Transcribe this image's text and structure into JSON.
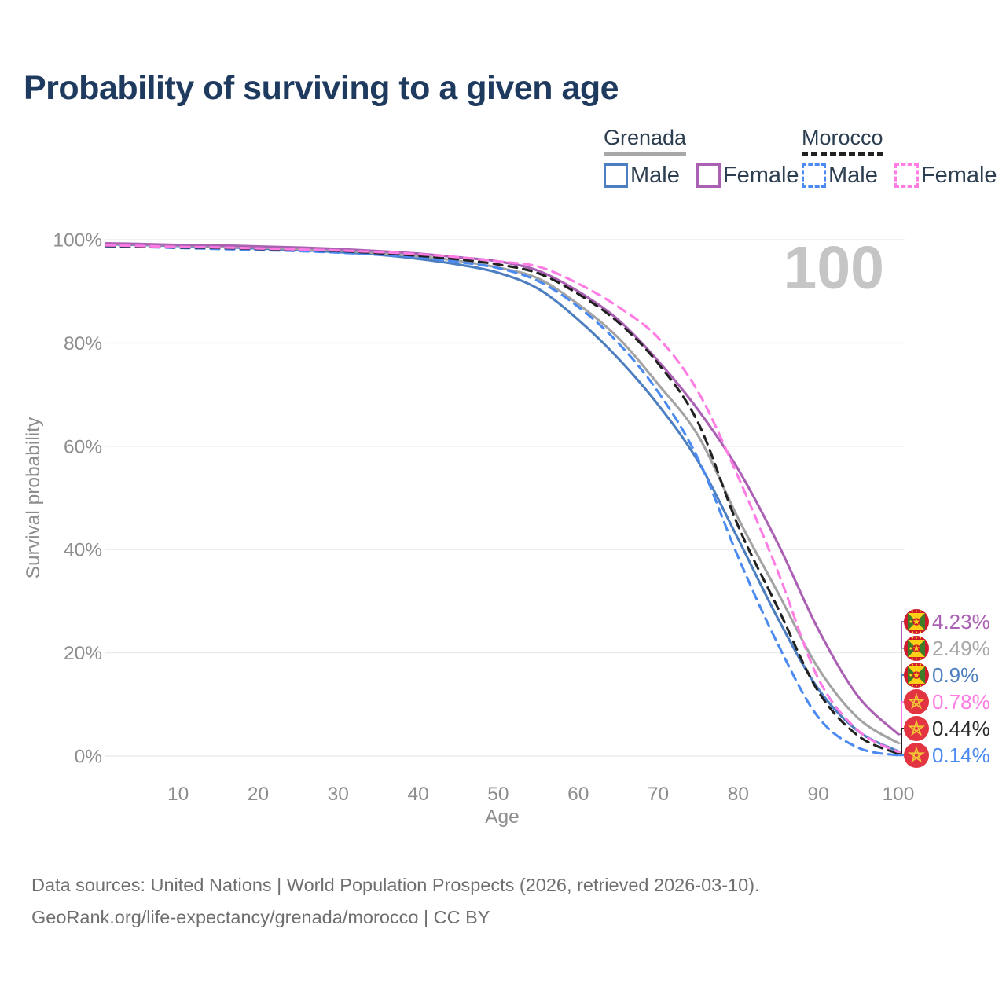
{
  "title": "Probability of surviving to a given age",
  "watermark": "100",
  "legend": {
    "groups": [
      {
        "label": "Grenada",
        "rule_color": "#a8a8a8",
        "rule_style": "solid",
        "items": [
          {
            "label": "Male",
            "color": "#4d7ec0",
            "style": "solid"
          },
          {
            "label": "Female",
            "color": "#ab61b3",
            "style": "solid"
          }
        ]
      },
      {
        "label": "Morocco",
        "rule_color": "#212121",
        "rule_style": "dashed",
        "items": [
          {
            "label": "Male",
            "color": "#4b8af2",
            "style": "dashed"
          },
          {
            "label": "Female",
            "color": "#ff7ce4",
            "style": "dashed"
          }
        ]
      }
    ]
  },
  "chart_data": {
    "type": "line",
    "title": "Probability of surviving to a given age",
    "xlabel": "Age",
    "ylabel": "Survival probability",
    "xlim": [
      1,
      100
    ],
    "ylim": [
      0,
      100
    ],
    "x_ticks": [
      10,
      20,
      30,
      40,
      50,
      60,
      70,
      80,
      90,
      100
    ],
    "y_ticks": [
      {
        "value": 0,
        "label": "0%"
      },
      {
        "value": 20,
        "label": "20%"
      },
      {
        "value": 40,
        "label": "40%"
      },
      {
        "value": 60,
        "label": "60%"
      },
      {
        "value": 80,
        "label": "80%"
      },
      {
        "value": 100,
        "label": "100%"
      }
    ],
    "grid": "horizontal",
    "legend_position": "top-right",
    "ages": [
      1,
      5,
      10,
      15,
      20,
      25,
      30,
      35,
      40,
      45,
      50,
      55,
      60,
      65,
      70,
      75,
      80,
      85,
      90,
      95,
      100
    ],
    "series": [
      {
        "name": "Grenada Male",
        "country": "Grenada",
        "sex": "Male",
        "color": "#4d7ec0",
        "dash": false,
        "values": [
          99.1,
          99.0,
          98.8,
          98.6,
          98.3,
          98.0,
          97.6,
          97.1,
          96.3,
          95.2,
          93.6,
          90.5,
          84.5,
          77.0,
          68.0,
          57.0,
          42.0,
          26.5,
          13.0,
          4.8,
          0.9
        ]
      },
      {
        "name": "Grenada Both sexes",
        "country": "Grenada",
        "sex": "Both",
        "color": "#a3a3a3",
        "dash": false,
        "values": [
          99.2,
          99.1,
          98.9,
          98.7,
          98.5,
          98.2,
          97.9,
          97.4,
          96.8,
          95.9,
          94.6,
          92.5,
          87.5,
          81.0,
          72.0,
          62.0,
          46.0,
          31.5,
          17.0,
          7.3,
          2.49
        ]
      },
      {
        "name": "Grenada Female",
        "country": "Grenada",
        "sex": "Female",
        "color": "#ab61b3",
        "dash": false,
        "values": [
          99.3,
          99.2,
          99.0,
          98.9,
          98.7,
          98.5,
          98.2,
          97.8,
          97.3,
          96.6,
          95.8,
          94.0,
          90.0,
          84.5,
          76.5,
          67.0,
          55.5,
          41.0,
          24.5,
          11.5,
          4.23
        ]
      },
      {
        "name": "Morocco Male",
        "country": "Morocco",
        "sex": "Male",
        "color": "#4b8af2",
        "dash": true,
        "values": [
          98.7,
          98.6,
          98.4,
          98.2,
          98.0,
          97.8,
          97.5,
          97.1,
          96.6,
          95.7,
          94.5,
          92.0,
          87.0,
          80.0,
          70.5,
          57.5,
          38.5,
          21.5,
          7.5,
          1.6,
          0.14
        ]
      },
      {
        "name": "Morocco Both sexes",
        "country": "Morocco",
        "sex": "Both",
        "color": "#212121",
        "dash": true,
        "values": [
          98.8,
          98.7,
          98.5,
          98.4,
          98.2,
          98.0,
          97.8,
          97.4,
          96.9,
          96.2,
          95.2,
          93.5,
          89.5,
          84.0,
          76.0,
          64.5,
          44.5,
          28.5,
          12.5,
          3.9,
          0.44
        ]
      },
      {
        "name": "Morocco Female",
        "country": "Morocco",
        "sex": "Female",
        "color": "#ff7ce4",
        "dash": true,
        "values": [
          98.9,
          98.8,
          98.6,
          98.5,
          98.3,
          98.1,
          97.9,
          97.6,
          97.2,
          96.6,
          95.8,
          94.8,
          91.5,
          87.0,
          81.0,
          70.5,
          54.0,
          35.5,
          15.0,
          4.9,
          0.78
        ]
      }
    ],
    "end_labels": [
      {
        "text": "4.23%",
        "series": "Grenada Female",
        "flag": "grenada",
        "color": "#ab61b3"
      },
      {
        "text": "2.49%",
        "series": "Grenada Both sexes",
        "flag": "grenada",
        "color": "#a8a8a8"
      },
      {
        "text": "0.9%",
        "series": "Grenada Male",
        "flag": "grenada",
        "color": "#4d7ec0"
      },
      {
        "text": "0.78%",
        "series": "Morocco Female",
        "flag": "morocco",
        "color": "#ff7ce4"
      },
      {
        "text": "0.44%",
        "series": "Morocco Both sexes",
        "flag": "morocco",
        "color": "#2b2b2b"
      },
      {
        "text": "0.14%",
        "series": "Morocco Male",
        "flag": "morocco",
        "color": "#4b8af2"
      }
    ],
    "flag_colors": {
      "grenada_red": "#cf1b2b",
      "grenada_green": "#3d7d28",
      "grenada_yellow": "#fcd116",
      "morocco_red": "#e23441",
      "morocco_star": "#f3c536"
    }
  },
  "footer": {
    "line1": "Data sources: United Nations | World Population Prospects (2026, retrieved 2026-03-10).",
    "line2": "GeoRank.org/life-expectancy/grenada/morocco | CC BY"
  }
}
